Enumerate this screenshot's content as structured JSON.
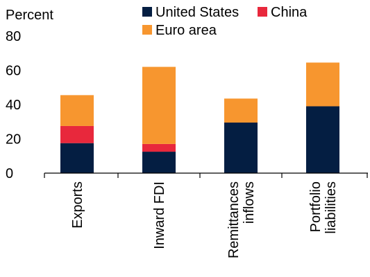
{
  "chart_data": {
    "type": "bar",
    "stacked": true,
    "ylabel": "Percent",
    "ylim": [
      0,
      80
    ],
    "yticks": [
      0,
      20,
      40,
      60,
      80
    ],
    "categories": [
      [
        "Exports"
      ],
      [
        "Inward FDI"
      ],
      [
        "Remittances",
        "inflows"
      ],
      [
        "Portfolio",
        "liabilities"
      ]
    ],
    "series": [
      {
        "name": "United States",
        "color": "#041E42",
        "values": [
          17.5,
          12.5,
          29.5,
          39
        ]
      },
      {
        "name": "China",
        "color": "#E8283C",
        "values": [
          10,
          4.5,
          0,
          0
        ]
      },
      {
        "name": "Euro area",
        "color": "#F7962F",
        "values": [
          18,
          45,
          14,
          25.5
        ]
      }
    ],
    "legend_position": "top",
    "grid": false
  }
}
